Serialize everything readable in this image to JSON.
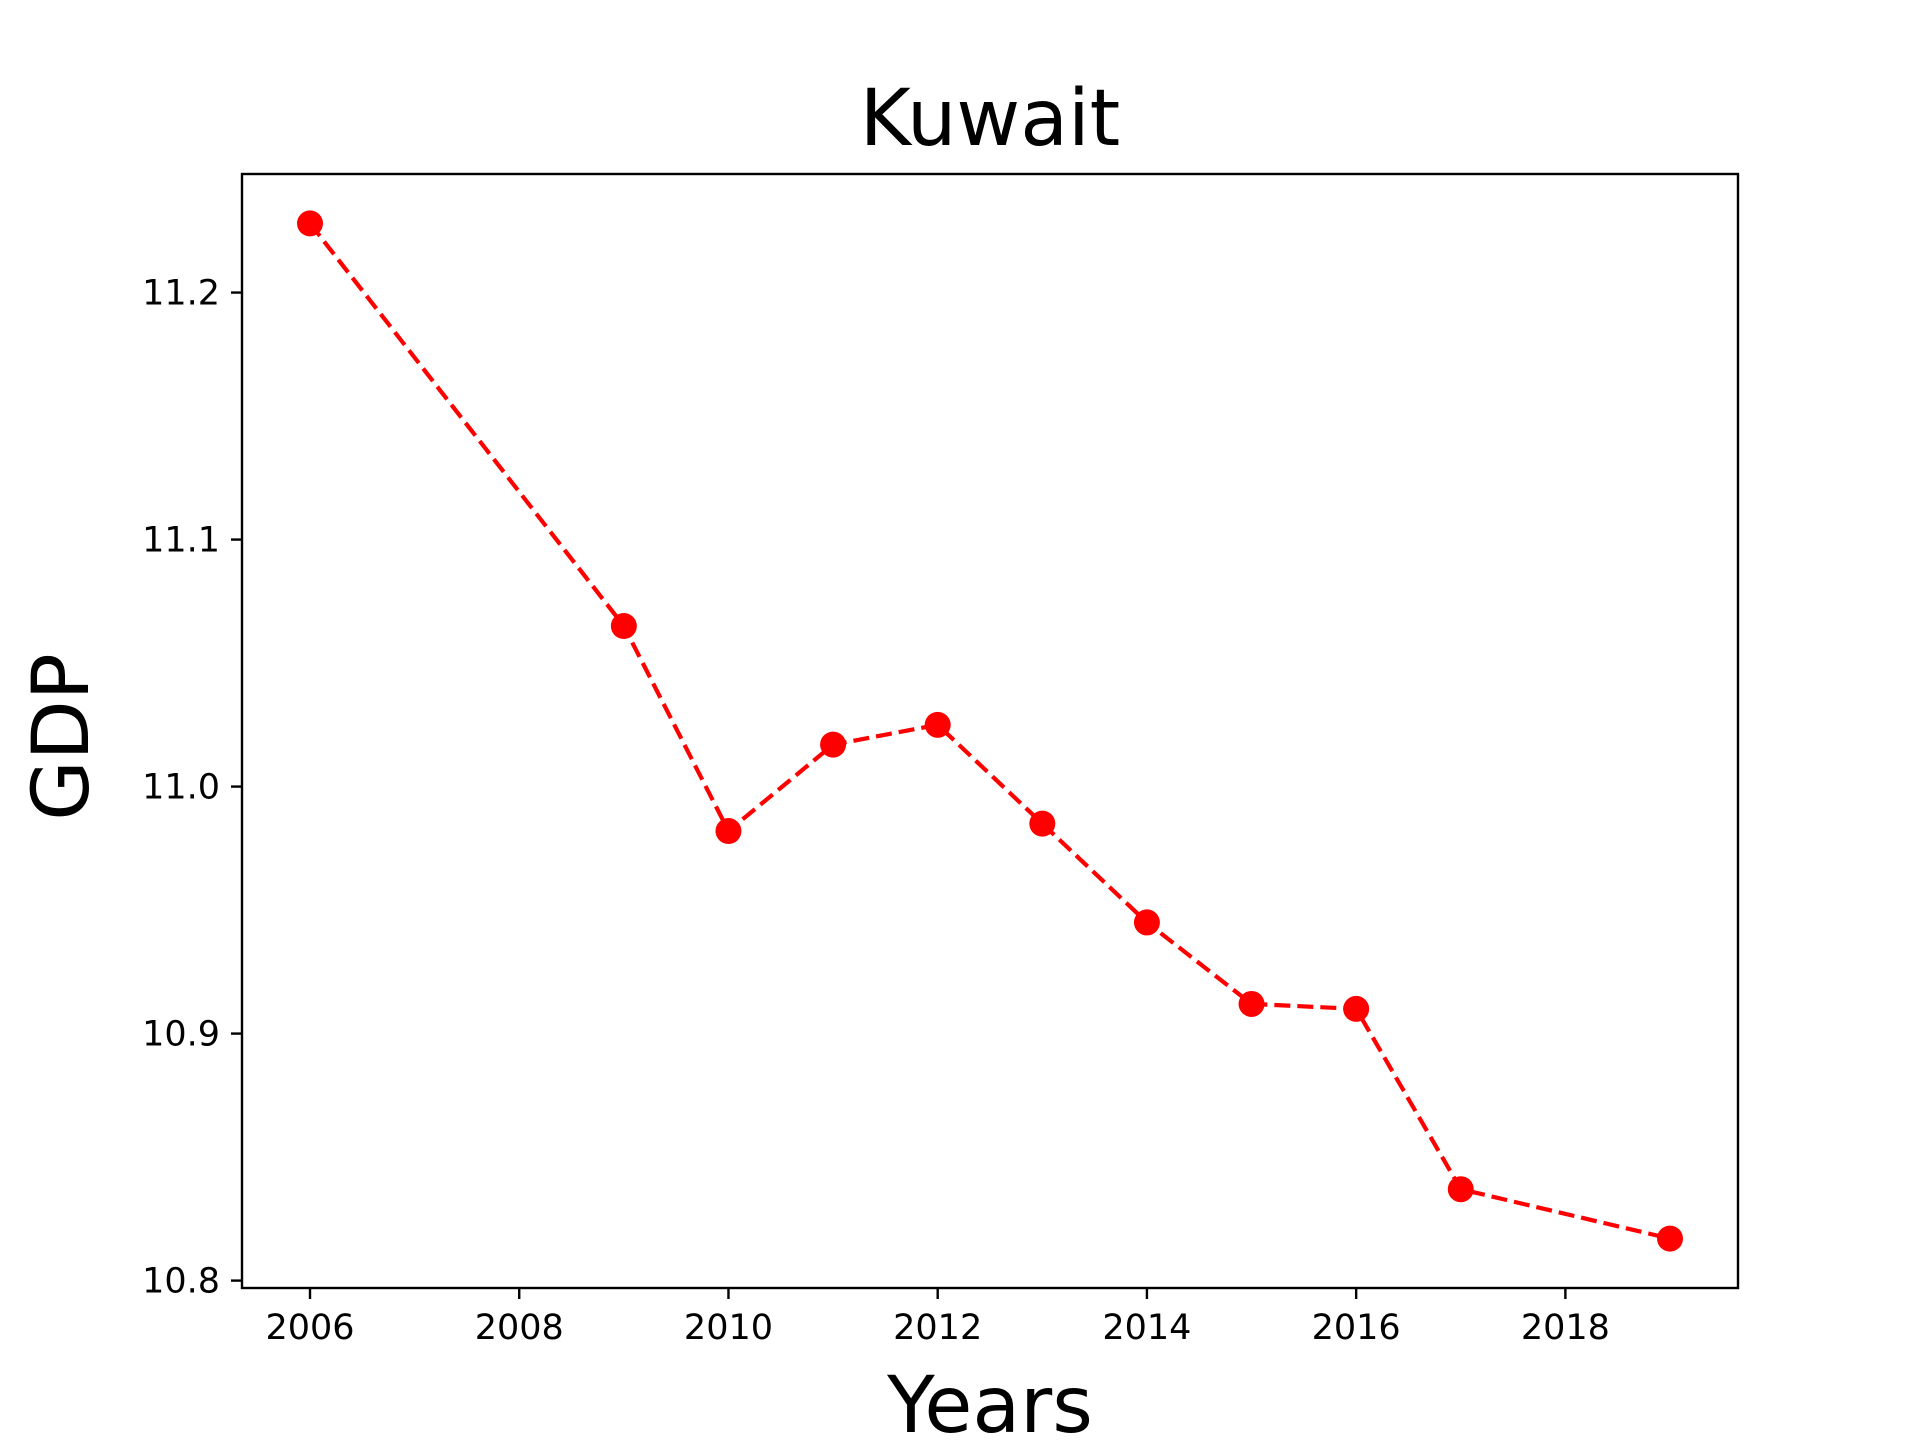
{
  "chart_data": {
    "type": "line",
    "title": "Kuwait",
    "xlabel": "Years",
    "ylabel": "GDP",
    "xlim": [
      2005.35,
      2019.65
    ],
    "ylim": [
      10.797,
      11.248
    ],
    "xticks": [
      2006,
      2008,
      2010,
      2012,
      2014,
      2016,
      2018
    ],
    "yticks": [
      10.8,
      10.9,
      11.0,
      11.1,
      11.2
    ],
    "ytick_labels": [
      "10.8",
      "10.9",
      "11.0",
      "11.1",
      "11.2"
    ],
    "grid": false,
    "series": [
      {
        "color": "#ff0000",
        "line_style": "dashed",
        "marker": "circle",
        "x": [
          2006,
          2009,
          2010,
          2011,
          2012,
          2013,
          2014,
          2015,
          2016,
          2017,
          2019
        ],
        "y": [
          11.228,
          11.065,
          10.982,
          11.017,
          11.025,
          10.985,
          10.945,
          10.912,
          10.91,
          10.837,
          10.817
        ]
      }
    ]
  }
}
